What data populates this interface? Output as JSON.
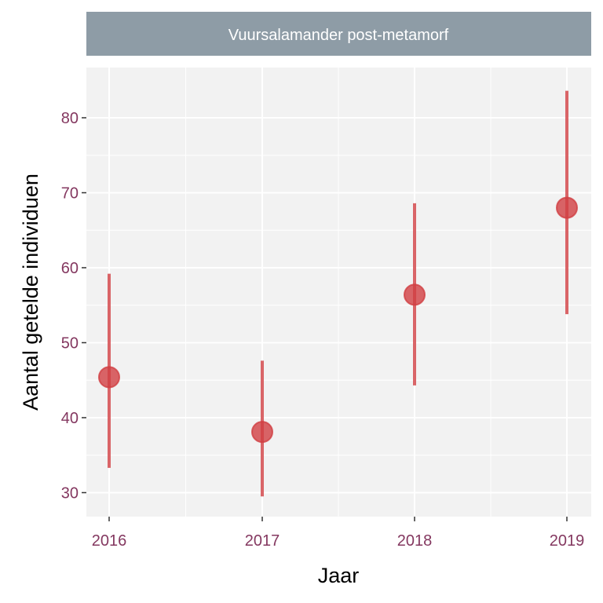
{
  "chart_data": {
    "type": "scatter",
    "panel_title": "Vuursalamander post-metamorf",
    "xlabel": "Jaar",
    "ylabel": "Aantal getelde individuen",
    "categories": [
      "2016",
      "2017",
      "2018",
      "2019"
    ],
    "series": [
      {
        "estimate": [
          45.4,
          38.1,
          56.4,
          68.0
        ],
        "lower": [
          33.3,
          29.5,
          44.3,
          53.8
        ],
        "upper": [
          59.2,
          47.6,
          68.6,
          83.6
        ]
      }
    ],
    "y_ticks": [
      30,
      40,
      50,
      60,
      70,
      80
    ],
    "ylim": [
      26.8,
      86.7
    ],
    "grid": true,
    "colors": {
      "point": "#d13f42",
      "panel_background": "#f2f2f2",
      "strip_background": "#8e9ca6",
      "tick_label": "#843860",
      "grid": "#ffffff"
    }
  }
}
